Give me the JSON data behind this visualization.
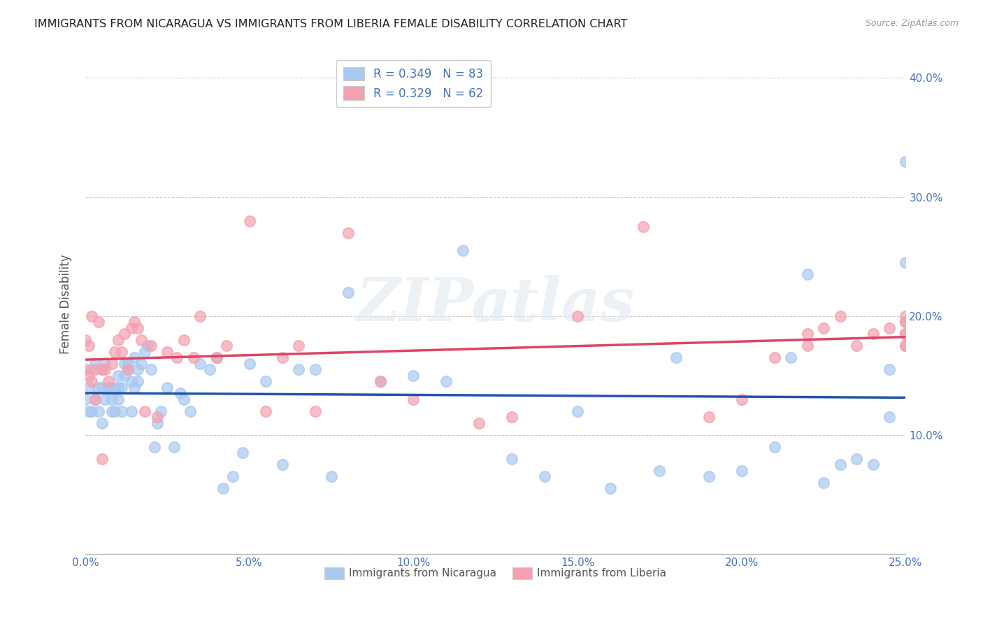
{
  "title": "IMMIGRANTS FROM NICARAGUA VS IMMIGRANTS FROM LIBERIA FEMALE DISABILITY CORRELATION CHART",
  "source": "Source: ZipAtlas.com",
  "ylabel": "Female Disability",
  "xlim": [
    0.0,
    0.25
  ],
  "ylim": [
    0.0,
    0.42
  ],
  "yticks": [
    0.1,
    0.2,
    0.3,
    0.4
  ],
  "xticks": [
    0.0,
    0.05,
    0.1,
    0.15,
    0.2,
    0.25
  ],
  "legend_r1": "R = 0.349   N = 83",
  "legend_r2": "R = 0.329   N = 62",
  "color_nicaragua": "#a8c8f0",
  "color_liberia": "#f5a0b0",
  "trendline_nicaragua": "#2255aa",
  "trendline_liberia": "#dd4466",
  "watermark_zip": "ZIP",
  "watermark_atlas": "atlas",
  "figsize": [
    14.06,
    8.92
  ],
  "dpi": 100,
  "nicaragua_x": [
    0.0,
    0.001,
    0.001,
    0.002,
    0.002,
    0.003,
    0.003,
    0.004,
    0.004,
    0.005,
    0.005,
    0.005,
    0.006,
    0.006,
    0.007,
    0.007,
    0.008,
    0.008,
    0.009,
    0.009,
    0.01,
    0.01,
    0.01,
    0.011,
    0.011,
    0.012,
    0.012,
    0.013,
    0.013,
    0.014,
    0.014,
    0.015,
    0.015,
    0.016,
    0.016,
    0.017,
    0.018,
    0.019,
    0.02,
    0.021,
    0.022,
    0.023,
    0.025,
    0.027,
    0.029,
    0.03,
    0.032,
    0.035,
    0.038,
    0.04,
    0.042,
    0.045,
    0.048,
    0.05,
    0.055,
    0.06,
    0.065,
    0.07,
    0.075,
    0.08,
    0.09,
    0.1,
    0.11,
    0.115,
    0.13,
    0.14,
    0.15,
    0.16,
    0.175,
    0.18,
    0.19,
    0.2,
    0.21,
    0.215,
    0.22,
    0.225,
    0.23,
    0.235,
    0.24,
    0.245,
    0.245,
    0.25,
    0.25
  ],
  "nicaragua_y": [
    0.13,
    0.12,
    0.14,
    0.155,
    0.12,
    0.13,
    0.16,
    0.14,
    0.12,
    0.11,
    0.155,
    0.14,
    0.16,
    0.13,
    0.14,
    0.14,
    0.13,
    0.12,
    0.14,
    0.12,
    0.14,
    0.13,
    0.15,
    0.14,
    0.12,
    0.15,
    0.16,
    0.155,
    0.16,
    0.12,
    0.145,
    0.14,
    0.165,
    0.145,
    0.155,
    0.16,
    0.17,
    0.175,
    0.155,
    0.09,
    0.11,
    0.12,
    0.14,
    0.09,
    0.135,
    0.13,
    0.12,
    0.16,
    0.155,
    0.165,
    0.055,
    0.065,
    0.085,
    0.16,
    0.145,
    0.075,
    0.155,
    0.155,
    0.065,
    0.22,
    0.145,
    0.15,
    0.145,
    0.255,
    0.08,
    0.065,
    0.12,
    0.055,
    0.07,
    0.165,
    0.065,
    0.07,
    0.09,
    0.165,
    0.235,
    0.06,
    0.075,
    0.08,
    0.075,
    0.115,
    0.155,
    0.33,
    0.245
  ],
  "liberia_x": [
    0.0,
    0.0,
    0.001,
    0.001,
    0.002,
    0.002,
    0.003,
    0.003,
    0.004,
    0.005,
    0.005,
    0.006,
    0.007,
    0.008,
    0.009,
    0.01,
    0.011,
    0.012,
    0.013,
    0.014,
    0.015,
    0.016,
    0.017,
    0.018,
    0.02,
    0.022,
    0.025,
    0.028,
    0.03,
    0.033,
    0.035,
    0.04,
    0.043,
    0.05,
    0.055,
    0.06,
    0.065,
    0.07,
    0.08,
    0.09,
    0.1,
    0.12,
    0.13,
    0.15,
    0.17,
    0.19,
    0.2,
    0.21,
    0.22,
    0.22,
    0.225,
    0.23,
    0.235,
    0.24,
    0.245,
    0.25,
    0.25,
    0.25,
    0.25,
    0.25,
    0.25,
    0.25
  ],
  "liberia_y": [
    0.155,
    0.18,
    0.15,
    0.175,
    0.145,
    0.2,
    0.13,
    0.155,
    0.195,
    0.08,
    0.155,
    0.155,
    0.145,
    0.16,
    0.17,
    0.18,
    0.17,
    0.185,
    0.155,
    0.19,
    0.195,
    0.19,
    0.18,
    0.12,
    0.175,
    0.115,
    0.17,
    0.165,
    0.18,
    0.165,
    0.2,
    0.165,
    0.175,
    0.28,
    0.12,
    0.165,
    0.175,
    0.12,
    0.27,
    0.145,
    0.13,
    0.11,
    0.115,
    0.2,
    0.275,
    0.115,
    0.13,
    0.165,
    0.175,
    0.185,
    0.19,
    0.2,
    0.175,
    0.185,
    0.19,
    0.195,
    0.2,
    0.175,
    0.185,
    0.175,
    0.195,
    0.185
  ]
}
